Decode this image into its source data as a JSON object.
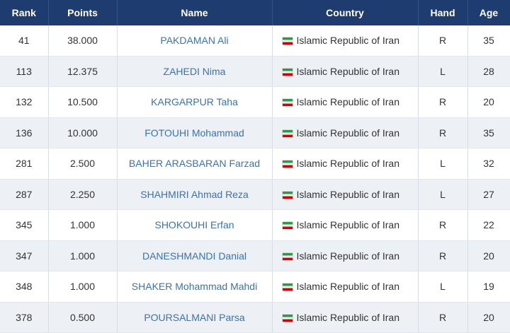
{
  "table": {
    "headers": [
      "Rank",
      "Points",
      "Name",
      "Country",
      "Hand",
      "Age"
    ],
    "rows": [
      [
        "41",
        "38.000",
        "PAKDAMAN Ali",
        "Islamic Republic of Iran",
        "R",
        "35"
      ],
      [
        "113",
        "12.375",
        "ZAHEDI Nima",
        "Islamic Republic of Iran",
        "L",
        "28"
      ],
      [
        "132",
        "10.500",
        "KARGARPUR Taha",
        "Islamic Republic of Iran",
        "R",
        "20"
      ],
      [
        "136",
        "10.000",
        "FOTOUHI Mohammad",
        "Islamic Republic of Iran",
        "R",
        "35"
      ],
      [
        "281",
        "2.500",
        "BAHER ARASBARAN Farzad",
        "Islamic Republic of Iran",
        "L",
        "32"
      ],
      [
        "287",
        "2.250",
        "SHAHMIRI Ahmad Reza",
        "Islamic Republic of Iran",
        "L",
        "27"
      ],
      [
        "345",
        "1.000",
        "SHOKOUHI Erfan",
        "Islamic Republic of Iran",
        "R",
        "22"
      ],
      [
        "347",
        "1.000",
        "DANESHMANDI Danial",
        "Islamic Republic of Iran",
        "R",
        "20"
      ],
      [
        "348",
        "1.000",
        "SHAKER Mohammad Mahdi",
        "Islamic Republic of Iran",
        "L",
        "19"
      ],
      [
        "378",
        "0.500",
        "POURSALMANI Parsa",
        "Islamic Republic of Iran",
        "R",
        "20"
      ]
    ]
  }
}
